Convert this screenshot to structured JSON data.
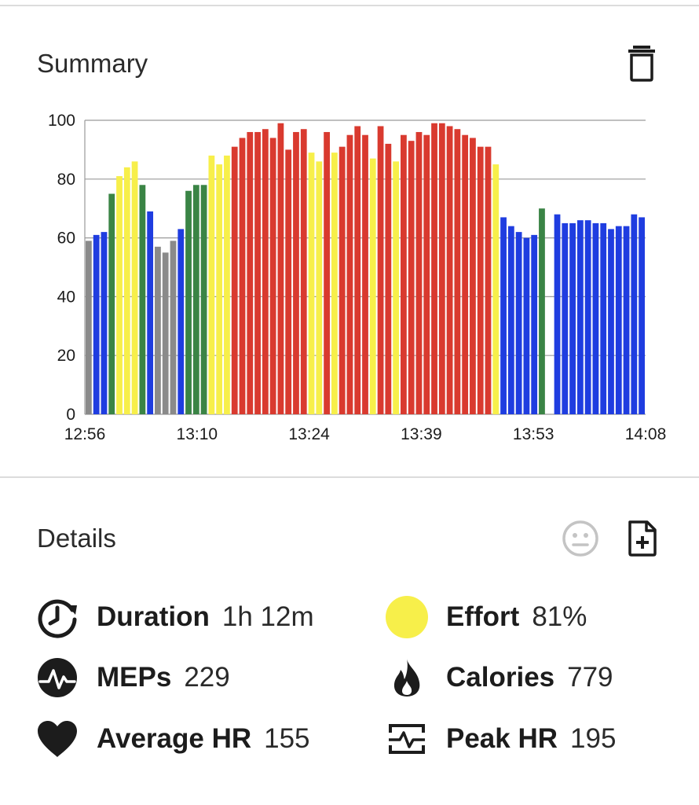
{
  "summary": {
    "title": "Summary",
    "delete_icon": "trash-icon"
  },
  "details": {
    "title": "Details",
    "mood_icon": "neutral-face-icon",
    "add_icon": "add-file-icon"
  },
  "stats": {
    "duration": {
      "label": "Duration",
      "value": "1h 12m",
      "icon": "clock-refresh-icon"
    },
    "meps": {
      "label": "MEPs",
      "value": "229",
      "icon": "heartbeat-circle-icon"
    },
    "average_hr": {
      "label": "Average HR",
      "value": "155",
      "icon": "heart-icon"
    },
    "effort": {
      "label": "Effort",
      "value": "81%",
      "icon": "effort-zone-dot-icon",
      "color": "#f7ef4a"
    },
    "calories": {
      "label": "Calories",
      "value": "779",
      "icon": "flame-icon"
    },
    "peak_hr": {
      "label": "Peak HR",
      "value": "195",
      "icon": "pulse-chart-icon"
    }
  },
  "chart_data": {
    "type": "bar",
    "title": "",
    "xlabel": "",
    "ylabel": "",
    "ylim": [
      0,
      100
    ],
    "yticks": [
      "0",
      "20",
      "40",
      "60",
      "80",
      "100"
    ],
    "xticks": [
      "12:56",
      "13:10",
      "13:24",
      "13:39",
      "13:53",
      "14:08"
    ],
    "grid": true,
    "zone_colors": {
      "gray": "#8a8a8a",
      "blue": "#1f3de0",
      "green": "#3a8445",
      "yellow": "#f7ef4a",
      "red": "#d93a2f"
    },
    "values": [
      59,
      61,
      62,
      75,
      81,
      84,
      86,
      78,
      69,
      57,
      55,
      59,
      63,
      76,
      78,
      78,
      88,
      85,
      88,
      91,
      94,
      96,
      96,
      97,
      94,
      99,
      90,
      96,
      97,
      89,
      86,
      96,
      89,
      91,
      95,
      98,
      95,
      87,
      98,
      92,
      86,
      95,
      93,
      96,
      95,
      99,
      99,
      98,
      97,
      95,
      94,
      91,
      91,
      85,
      67,
      64,
      62,
      60,
      61,
      70,
      0,
      68,
      65,
      65,
      66,
      66,
      65,
      65,
      63,
      64,
      64,
      68,
      67
    ],
    "zones": [
      "gray",
      "blue",
      "blue",
      "green",
      "yellow",
      "yellow",
      "yellow",
      "green",
      "blue",
      "gray",
      "gray",
      "gray",
      "blue",
      "green",
      "green",
      "green",
      "yellow",
      "yellow",
      "yellow",
      "red",
      "red",
      "red",
      "red",
      "red",
      "red",
      "red",
      "red",
      "red",
      "red",
      "yellow",
      "yellow",
      "red",
      "yellow",
      "red",
      "red",
      "red",
      "red",
      "yellow",
      "red",
      "red",
      "yellow",
      "red",
      "red",
      "red",
      "red",
      "red",
      "red",
      "red",
      "red",
      "red",
      "red",
      "red",
      "red",
      "yellow",
      "blue",
      "blue",
      "blue",
      "blue",
      "blue",
      "green",
      "blue",
      "blue",
      "blue",
      "blue",
      "blue",
      "blue",
      "blue",
      "blue",
      "blue",
      "blue",
      "blue",
      "blue",
      "blue"
    ]
  }
}
